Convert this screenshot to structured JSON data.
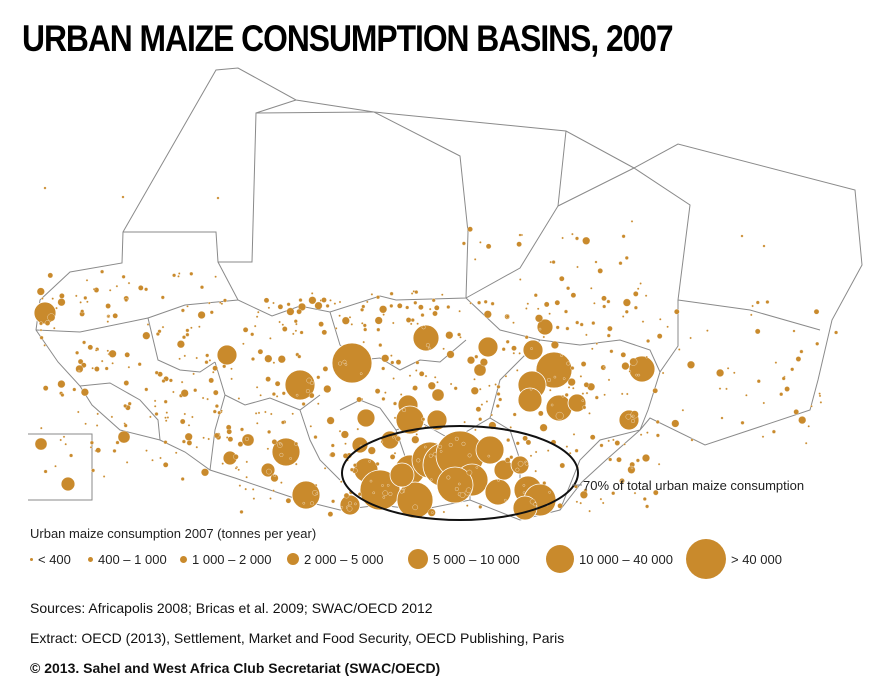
{
  "title": "URBAN MAIZE CONSUMPTION BASINS, 2007",
  "annotation": "70% of total urban maize consumption",
  "legend": {
    "title": "Urban maize consumption 2007 (tonnes per year)",
    "items": [
      {
        "label": "< 400",
        "symbol_size": 1
      },
      {
        "label": "400 – 1 000",
        "symbol_size": 2
      },
      {
        "label": "1 000 – 2 000",
        "symbol_size": 3
      },
      {
        "label": "2 000 – 5 000",
        "symbol_size": 4
      },
      {
        "label": "5 000 – 10 000",
        "symbol_size": 5
      },
      {
        "label": "10 000 – 40 000",
        "symbol_size": 6
      },
      {
        "label": "> 40 000",
        "symbol_size": 7
      }
    ]
  },
  "sources": "Sources: Africapolis 2008; Bricas et al. 2009; SWAC/OECD 2012",
  "extract": "Extract: OECD (2013), Settlement, Market and Food Security, OECD Publishing, Paris",
  "copyright": "© 2013. Sahel and West Africa Club Secretariat (SWAC/OECD)",
  "colors": {
    "circle": "#c98a2c",
    "border": "#8a8a8a",
    "ellipse": "#111111"
  }
}
